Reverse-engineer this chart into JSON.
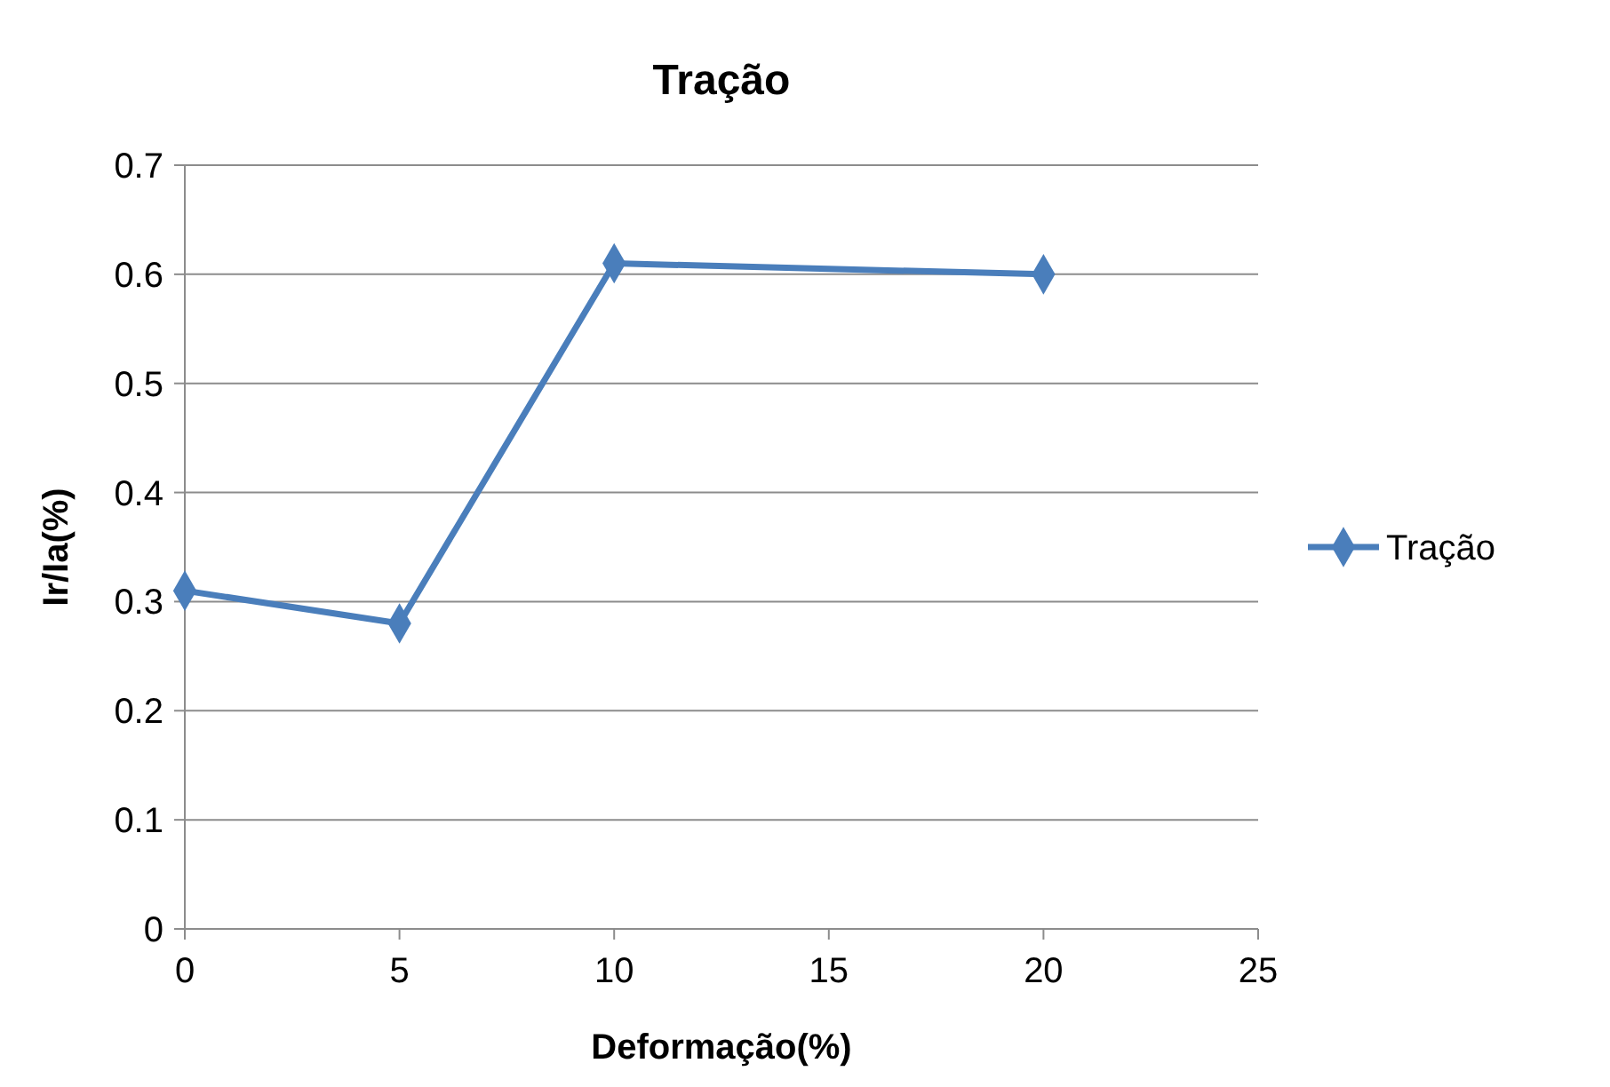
{
  "chart_data": {
    "type": "line",
    "title": "Tração",
    "xlabel": "Deformação(%)",
    "ylabel": "Ir/Ia(%)",
    "x": [
      0,
      5,
      10,
      20
    ],
    "series": [
      {
        "name": "Tração",
        "color": "#4a7ebb",
        "values": [
          0.31,
          0.28,
          0.61,
          0.6
        ]
      }
    ],
    "xlim": [
      0,
      25
    ],
    "xticks": [
      0,
      5,
      10,
      15,
      20,
      25
    ],
    "ylim": [
      0,
      0.7
    ],
    "yticks": [
      0,
      0.1,
      0.2,
      0.3,
      0.4,
      0.5,
      0.6,
      0.7
    ],
    "grid": "y",
    "legend": "right",
    "marker": "diamond",
    "line_style": "solid"
  }
}
